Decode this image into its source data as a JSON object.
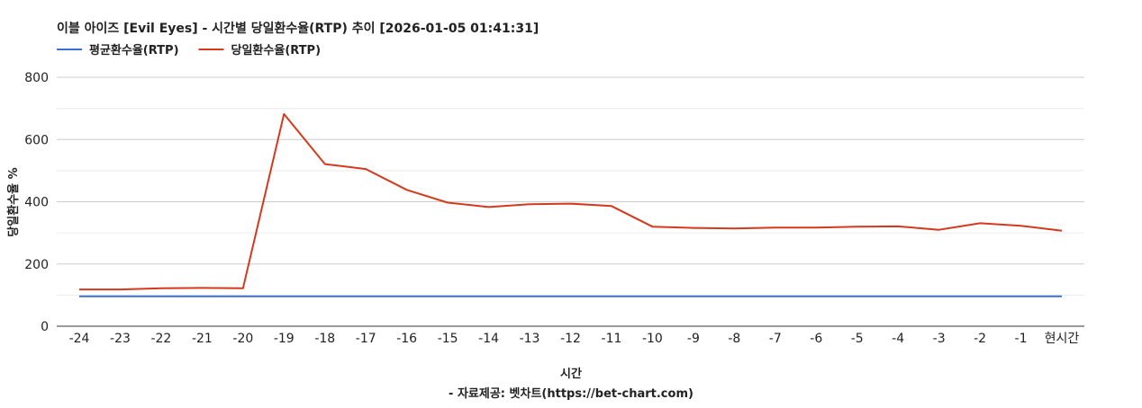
{
  "chart_data": {
    "type": "line",
    "title": "이블 아이즈 [Evil Eyes] - 시간별 당일환수율(RTP) 추이 [2026-01-05 01:41:31]",
    "xlabel": "시간",
    "ylabel": "당일환수율 %",
    "source": "- 자료제공: 벳차트(https://bet-chart.com)",
    "legend_position": "top-left",
    "grid": true,
    "ylim": [
      0,
      800
    ],
    "yticks": [
      "0",
      "200",
      "400",
      "600",
      "800"
    ],
    "categories": [
      "-24",
      "-23",
      "-22",
      "-21",
      "-20",
      "-19",
      "-18",
      "-17",
      "-16",
      "-15",
      "-14",
      "-13",
      "-12",
      "-11",
      "-10",
      "-9",
      "-8",
      "-7",
      "-6",
      "-5",
      "-4",
      "-3",
      "-2",
      "-1",
      "현시간"
    ],
    "series": [
      {
        "name": "평균환수율(RTP)",
        "color": "#3b6fd4",
        "values": [
          96,
          96,
          96,
          96,
          96,
          96,
          96,
          96,
          96,
          96,
          96,
          96,
          96,
          96,
          96,
          96,
          96,
          96,
          96,
          96,
          96,
          96,
          96,
          96,
          96
        ]
      },
      {
        "name": "당일환수율(RTP)",
        "color": "#d4391c",
        "values": [
          118,
          118,
          122,
          123,
          122,
          682,
          521,
          505,
          438,
          397,
          383,
          392,
          394,
          386,
          320,
          316,
          314,
          317,
          317,
          320,
          321,
          310,
          331,
          323,
          307
        ]
      }
    ]
  }
}
